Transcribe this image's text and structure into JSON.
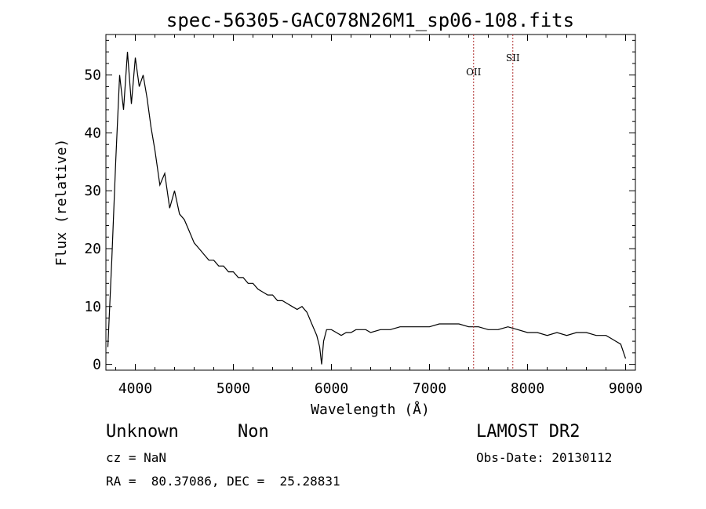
{
  "chart_data": {
    "type": "line",
    "title": "spec-56305-GAC078N26M1_sp06-108.fits",
    "xlabel": "Wavelength (Å)",
    "ylabel": "Flux (relative)",
    "xlim": [
      3700,
      9100
    ],
    "ylim": [
      -1,
      57
    ],
    "xticks": [
      4000,
      5000,
      6000,
      7000,
      8000,
      9000
    ],
    "yticks": [
      0,
      10,
      20,
      30,
      40,
      50
    ],
    "line_color": "#000000",
    "line_markers": [
      {
        "label": "OII",
        "x": 7450,
        "color": "#b03030"
      },
      {
        "label": "SII",
        "x": 7850,
        "color": "#b03030"
      }
    ],
    "series": [
      {
        "x": [
          3720,
          3760,
          3800,
          3840,
          3880,
          3920,
          3960,
          4000,
          4040,
          4080,
          4120,
          4160,
          4200,
          4250,
          4300,
          4350,
          4400,
          4450,
          4500,
          4550,
          4600,
          4650,
          4700,
          4750,
          4800,
          4850,
          4900,
          4950,
          5000,
          5050,
          5100,
          5150,
          5200,
          5250,
          5300,
          5350,
          5400,
          5450,
          5500,
          5550,
          5600,
          5650,
          5700,
          5750,
          5800,
          5850,
          5880,
          5900,
          5920,
          5950,
          6000,
          6050,
          6100,
          6150,
          6200,
          6250,
          6300,
          6350,
          6400,
          6500,
          6600,
          6700,
          6800,
          6900,
          7000,
          7100,
          7200,
          7300,
          7400,
          7500,
          7600,
          7700,
          7800,
          7900,
          8000,
          8100,
          8200,
          8300,
          8400,
          8500,
          8600,
          8700,
          8800,
          8850,
          8900,
          8950,
          9000
        ],
        "y": [
          3,
          18,
          35,
          50,
          44,
          54,
          45,
          53,
          48,
          50,
          46,
          41,
          37,
          31,
          33,
          27,
          30,
          26,
          25,
          23,
          21,
          20,
          19,
          18,
          18,
          17,
          17,
          16,
          16,
          15,
          15,
          14,
          14,
          13,
          12.5,
          12,
          12,
          11,
          11,
          10.5,
          10,
          9.5,
          10,
          9,
          7,
          5,
          3,
          0,
          4,
          6,
          6,
          5.5,
          5,
          5.5,
          5.5,
          6,
          6,
          6,
          5.5,
          6,
          6,
          6.5,
          6.5,
          6.5,
          6.5,
          7,
          7,
          7,
          6.5,
          6.5,
          6,
          6,
          6.5,
          6,
          5.5,
          5.5,
          5,
          5.5,
          5,
          5.5,
          5.5,
          5,
          5,
          4.5,
          4,
          3.5,
          1
        ]
      }
    ]
  },
  "info": {
    "object_class": "Unknown",
    "subclass": "Non",
    "survey": "LAMOST DR2",
    "cz": "cz = NaN",
    "obs_date": "Obs-Date: 20130112",
    "coords": "RA =  80.37086, DEC =  25.28831"
  }
}
